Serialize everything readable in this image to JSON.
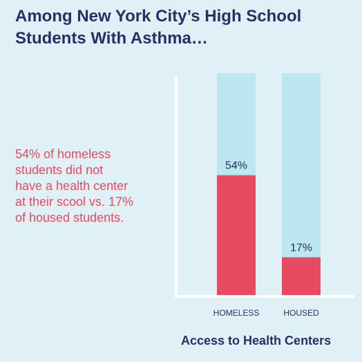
{
  "title_lines": [
    "Among New York City’s High School",
    "Students With Asthma…"
  ],
  "note_lines": [
    "54% of homeless",
    "students did not",
    "have a health center",
    "at their scool vs. 17%",
    "of housed students."
  ],
  "footer": "Access to Health Centers",
  "colors": {
    "background": "#dff0f7",
    "bar_fill": "#e84a5f",
    "bar_track": "#bce6f0",
    "axis": "#ffffff",
    "text_dark": "#2b2e63",
    "text_accent": "#e84a5f"
  },
  "chart_data": {
    "type": "bar",
    "categories": [
      "HOMELESS",
      "HOUSED"
    ],
    "values": [
      54,
      17
    ],
    "value_labels": [
      "54%",
      "17%"
    ],
    "ylim": [
      0,
      100
    ],
    "grid": false
  }
}
